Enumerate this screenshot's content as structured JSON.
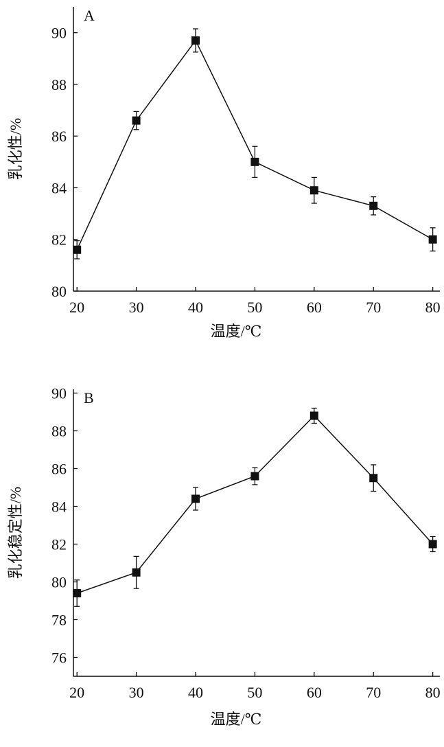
{
  "chart_data": [
    {
      "type": "line",
      "panel_label": "A",
      "xlabel": "温度/℃",
      "ylabel": "乳化性/%",
      "x": [
        20,
        30,
        40,
        50,
        60,
        70,
        80
      ],
      "values": [
        81.6,
        86.6,
        89.7,
        85.0,
        83.9,
        83.3,
        82.0
      ],
      "errors": [
        0.35,
        0.35,
        0.45,
        0.6,
        0.5,
        0.35,
        0.45
      ],
      "xlim": [
        19.4,
        81.2
      ],
      "ylim": [
        80,
        91
      ],
      "xticks": [
        20,
        30,
        40,
        50,
        60,
        70,
        80
      ],
      "yticks": [
        80,
        82,
        84,
        86,
        88,
        90
      ],
      "grid": false,
      "marker": "square"
    },
    {
      "type": "line",
      "panel_label": "B",
      "xlabel": "温度/℃",
      "ylabel": "乳化稳定性/%",
      "x": [
        20,
        30,
        40,
        50,
        60,
        70,
        80
      ],
      "values": [
        79.4,
        80.5,
        84.4,
        85.6,
        88.8,
        85.5,
        82.0
      ],
      "errors": [
        0.7,
        0.85,
        0.6,
        0.45,
        0.4,
        0.7,
        0.4
      ],
      "xlim": [
        19.4,
        81.2
      ],
      "ylim": [
        75,
        90.2
      ],
      "xticks": [
        20,
        30,
        40,
        50,
        60,
        70,
        80
      ],
      "yticks": [
        76,
        78,
        80,
        82,
        84,
        86,
        88,
        90
      ],
      "grid": false,
      "marker": "square"
    }
  ]
}
